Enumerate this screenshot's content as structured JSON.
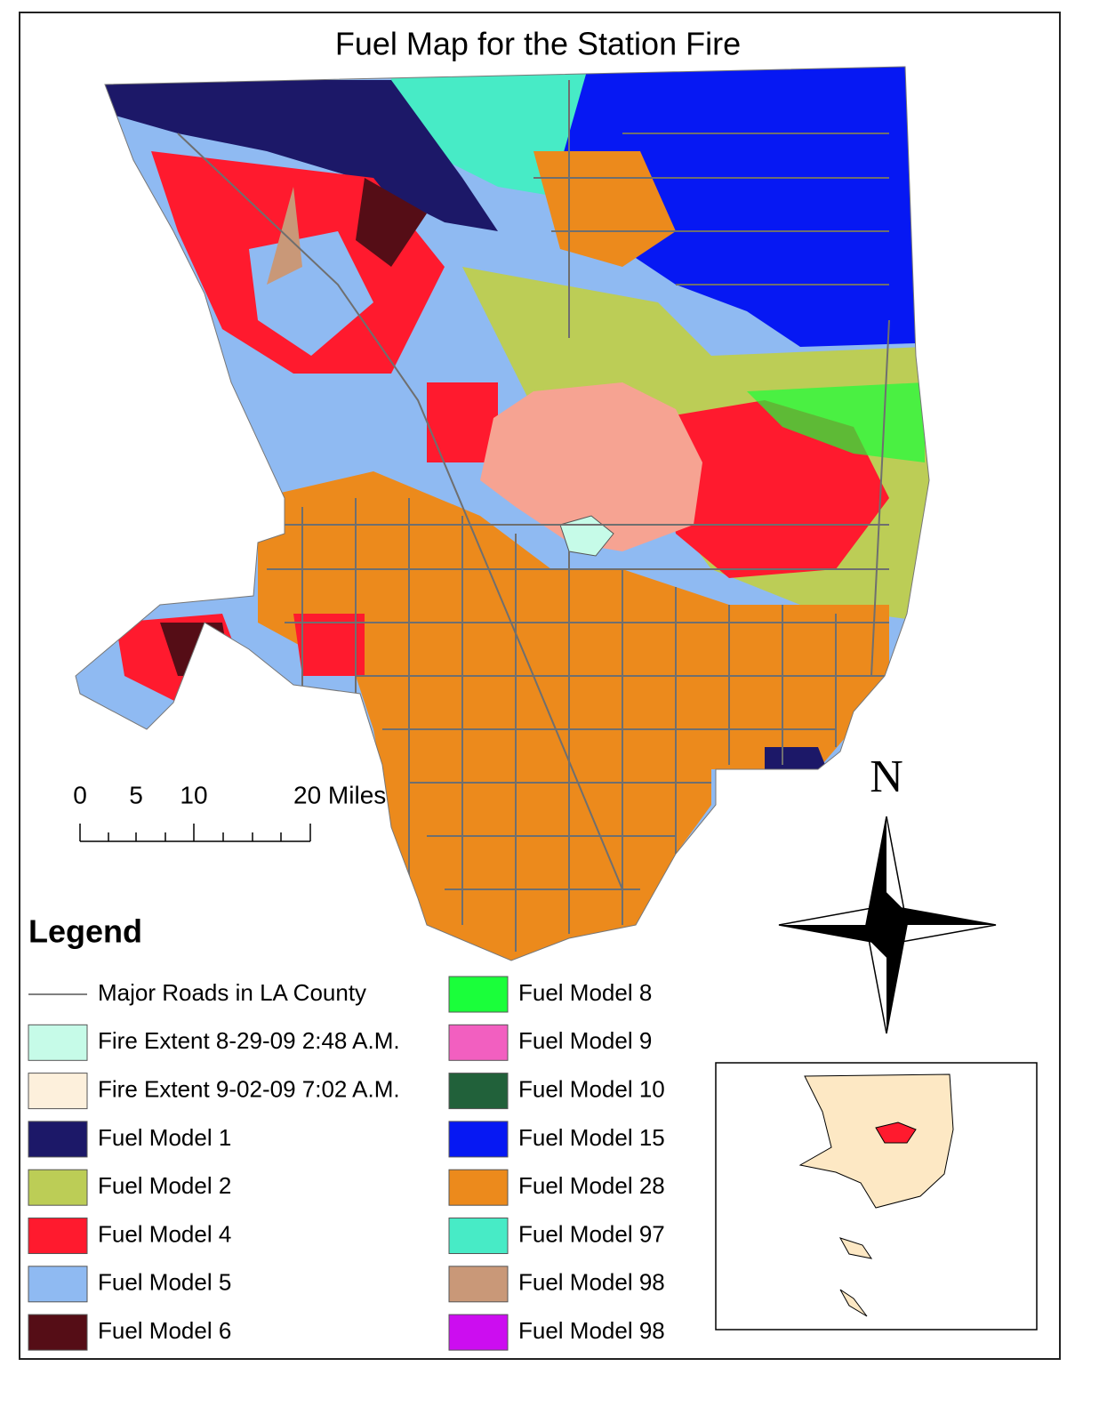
{
  "title": "Fuel Map for the Station Fire",
  "scale_bar": {
    "labels": [
      "0",
      "5",
      "10",
      "20 Miles"
    ]
  },
  "north_arrow": {
    "label": "N"
  },
  "legend": {
    "title": "Legend",
    "columns": [
      [
        {
          "label": "Major Roads in LA County",
          "color": "#808080",
          "symbol": "line"
        },
        {
          "label": "Fire Extent 8-29-09 2:48 A.M.",
          "color": "#c6fbe8",
          "symbol": "box"
        },
        {
          "label": "Fire Extent 9-02-09 7:02 A.M.",
          "color": "#fdf0dc",
          "symbol": "box"
        },
        {
          "label": "Fuel Model 1",
          "color": "#1c1868",
          "symbol": "box"
        },
        {
          "label": "Fuel Model 2",
          "color": "#bccd56",
          "symbol": "box"
        },
        {
          "label": "Fuel Model 4",
          "color": "#ff1a2e",
          "symbol": "box"
        },
        {
          "label": "Fuel Model 5",
          "color": "#8fbaf2",
          "symbol": "box"
        },
        {
          "label": "Fuel Model 6",
          "color": "#550d16",
          "symbol": "box"
        }
      ],
      [
        {
          "label": "Fuel Model 8",
          "color": "#1aff3a",
          "symbol": "box"
        },
        {
          "label": "Fuel Model 9",
          "color": "#f25fc0",
          "symbol": "box"
        },
        {
          "label": "Fuel Model 10",
          "color": "#21613a",
          "symbol": "box"
        },
        {
          "label": "Fuel Model 15",
          "color": "#0618f3",
          "symbol": "box"
        },
        {
          "label": "Fuel Model 28",
          "color": "#ec8a1c",
          "symbol": "box"
        },
        {
          "label": "Fuel Model 97",
          "color": "#47ebc6",
          "symbol": "box"
        },
        {
          "label": "Fuel Model 98",
          "color": "#c99878",
          "symbol": "box"
        },
        {
          "label": "Fuel Model 98",
          "color": "#cc0df0",
          "symbol": "box"
        }
      ]
    ]
  }
}
